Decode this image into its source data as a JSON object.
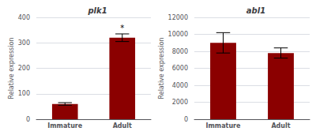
{
  "chart_data": [
    {
      "type": "bar",
      "title": "plk1",
      "categories": [
        "Immature",
        "Adult"
      ],
      "values": [
        60,
        320
      ],
      "errors": [
        5,
        15
      ],
      "ylabel": "Relative expression",
      "ylim": [
        0,
        400
      ],
      "yticks": [
        0,
        100,
        200,
        300,
        400
      ],
      "color": "#8B0000",
      "grid": true,
      "annotations": [
        {
          "category": "Adult",
          "text": "*"
        }
      ]
    },
    {
      "type": "bar",
      "title": "abl1",
      "categories": [
        "Immature",
        "Adult"
      ],
      "values": [
        9000,
        7800
      ],
      "errors": [
        1200,
        600
      ],
      "ylabel": "Relative expression",
      "ylim": [
        0,
        12000
      ],
      "yticks": [
        0,
        2000,
        4000,
        6000,
        8000,
        10000,
        12000
      ],
      "color": "#8B0000",
      "grid": true
    }
  ]
}
